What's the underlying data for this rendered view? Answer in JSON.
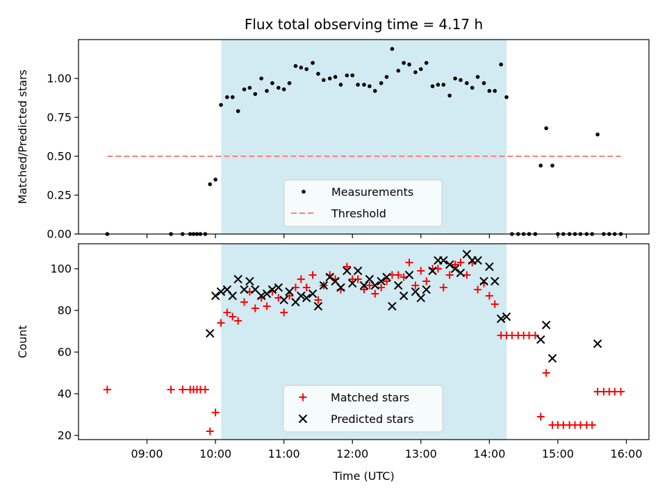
{
  "chart_data": [
    {
      "type": "scatter",
      "title": "Flux total observing time = 4.17 h",
      "xlabel": "",
      "ylabel": "Matched/Predicted stars",
      "ylim": [
        0,
        1.25
      ],
      "yticks": [
        "0.00",
        "0.25",
        "0.50",
        "0.75",
        "1.00"
      ],
      "ytick_values": [
        0,
        0.25,
        0.5,
        0.75,
        1.0
      ],
      "shaded_region": {
        "start": 10.083,
        "end": 14.25,
        "color": "#add8e6"
      },
      "legend": {
        "position": "bottom-center",
        "entries": [
          "Measurements",
          "Threshold"
        ]
      },
      "series": [
        {
          "name": "Measurements",
          "marker": "dot",
          "color": "#000000",
          "x": [
            8.42,
            9.35,
            9.52,
            9.63,
            9.68,
            9.73,
            9.78,
            9.85,
            9.92,
            10.0,
            10.08,
            10.17,
            10.25,
            10.33,
            10.42,
            10.5,
            10.58,
            10.67,
            10.75,
            10.83,
            10.92,
            11.0,
            11.08,
            11.17,
            11.25,
            11.33,
            11.42,
            11.5,
            11.58,
            11.67,
            11.75,
            11.83,
            11.92,
            12.0,
            12.08,
            12.17,
            12.25,
            12.33,
            12.42,
            12.5,
            12.58,
            12.67,
            12.75,
            12.83,
            12.92,
            13.0,
            13.08,
            13.17,
            13.25,
            13.33,
            13.42,
            13.5,
            13.58,
            13.67,
            13.75,
            13.83,
            13.92,
            14.0,
            14.08,
            14.17,
            14.25,
            14.33,
            14.42,
            14.5,
            14.58,
            14.67,
            14.75,
            14.83,
            14.92,
            15.0,
            15.08,
            15.17,
            15.25,
            15.33,
            15.42,
            15.5,
            15.58,
            15.67,
            15.75,
            15.83,
            15.92
          ],
          "y": [
            0,
            0,
            0,
            0,
            0,
            0,
            0,
            0,
            0.32,
            0.35,
            0.83,
            0.88,
            0.88,
            0.79,
            0.93,
            0.94,
            0.9,
            1.0,
            0.92,
            0.97,
            0.94,
            0.93,
            0.97,
            1.08,
            1.07,
            1.06,
            1.1,
            1.03,
            0.99,
            1.0,
            1.01,
            0.96,
            1.02,
            1.02,
            0.96,
            0.96,
            0.95,
            0.92,
            0.97,
            1.01,
            1.19,
            1.05,
            1.1,
            1.09,
            1.04,
            1.06,
            1.1,
            0.95,
            0.96,
            0.96,
            0.89,
            1.0,
            0.99,
            0.97,
            0.94,
            1.01,
            0.97,
            0.92,
            0.92,
            1.09,
            0.88,
            0,
            0,
            0,
            0,
            0,
            0.44,
            0.68,
            0.44,
            0,
            0,
            0,
            0,
            0,
            0,
            0,
            0.64,
            0,
            0,
            0,
            0
          ]
        },
        {
          "name": "Threshold",
          "marker": "dashed-line",
          "color": "#ff7f7f",
          "x": [
            8.42,
            15.92
          ],
          "y": [
            0.5,
            0.5
          ]
        }
      ]
    },
    {
      "type": "scatter",
      "title": "",
      "xlabel": "Time (UTC)",
      "ylabel": "Count",
      "ylim": [
        18,
        112
      ],
      "xlim": [
        8.0,
        16.33
      ],
      "yticks": [
        "20",
        "40",
        "60",
        "80",
        "100"
      ],
      "ytick_values": [
        20,
        40,
        60,
        80,
        100
      ],
      "xticks": [
        "09:00",
        "10:00",
        "11:00",
        "12:00",
        "13:00",
        "14:00",
        "15:00",
        "16:00"
      ],
      "xtick_values": [
        9,
        10,
        11,
        12,
        13,
        14,
        15,
        16
      ],
      "shaded_region": {
        "start": 10.083,
        "end": 14.25,
        "color": "#add8e6"
      },
      "legend": {
        "position": "bottom-center",
        "entries": [
          "Matched stars",
          "Predicted stars"
        ]
      },
      "series": [
        {
          "name": "Matched stars",
          "marker": "plus",
          "color": "#ff0000",
          "x": [
            8.42,
            9.35,
            9.52,
            9.63,
            9.68,
            9.73,
            9.78,
            9.85,
            9.92,
            10.0,
            10.08,
            10.17,
            10.25,
            10.33,
            10.42,
            10.5,
            10.58,
            10.67,
            10.75,
            10.83,
            10.92,
            11.0,
            11.08,
            11.17,
            11.25,
            11.33,
            11.42,
            11.5,
            11.58,
            11.67,
            11.75,
            11.83,
            11.92,
            12.0,
            12.08,
            12.17,
            12.25,
            12.33,
            12.42,
            12.5,
            12.58,
            12.67,
            12.75,
            12.83,
            12.92,
            13.0,
            13.08,
            13.17,
            13.25,
            13.33,
            13.42,
            13.5,
            13.58,
            13.67,
            13.75,
            13.83,
            13.92,
            14.0,
            14.08,
            14.17,
            14.25,
            14.33,
            14.42,
            14.5,
            14.58,
            14.67,
            14.75,
            14.83,
            14.92,
            15.0,
            15.08,
            15.17,
            15.25,
            15.33,
            15.42,
            15.5,
            15.58,
            15.67,
            15.75,
            15.83,
            15.92
          ],
          "y": [
            42,
            42,
            42,
            42,
            42,
            42,
            42,
            42,
            22,
            31,
            74,
            79,
            77,
            75,
            84,
            89,
            81,
            86,
            82,
            89,
            86,
            79,
            87,
            91,
            95,
            91,
            97,
            85,
            92,
            97,
            95,
            90,
            101,
            95,
            95,
            90,
            92,
            88,
            91,
            94,
            97,
            97,
            96,
            103,
            92,
            99,
            94,
            100,
            100,
            91,
            97,
            102,
            103,
            97,
            103,
            90,
            93,
            87,
            83,
            68,
            68,
            68,
            68,
            68,
            68,
            68,
            29,
            50,
            25,
            25,
            25,
            25,
            25,
            25,
            25,
            25,
            41,
            41,
            41,
            41,
            41
          ]
        },
        {
          "name": "Predicted stars",
          "marker": "x",
          "color": "#000000",
          "x": [
            9.92,
            10.0,
            10.08,
            10.17,
            10.25,
            10.33,
            10.42,
            10.5,
            10.58,
            10.67,
            10.75,
            10.83,
            10.92,
            11.0,
            11.08,
            11.17,
            11.25,
            11.33,
            11.42,
            11.5,
            11.58,
            11.67,
            11.75,
            11.83,
            11.92,
            12.0,
            12.08,
            12.17,
            12.25,
            12.33,
            12.42,
            12.5,
            12.58,
            12.67,
            12.75,
            12.83,
            12.92,
            13.0,
            13.08,
            13.17,
            13.25,
            13.33,
            13.42,
            13.5,
            13.58,
            13.67,
            13.75,
            13.83,
            13.92,
            14.0,
            14.08,
            14.17,
            14.25,
            14.75,
            14.83,
            14.92,
            15.58
          ],
          "y": [
            69,
            87,
            89,
            90,
            87,
            95,
            90,
            94,
            90,
            87,
            88,
            90,
            91,
            85,
            89,
            84,
            87,
            86,
            88,
            82,
            92,
            96,
            94,
            91,
            99,
            93,
            99,
            92,
            95,
            92,
            94,
            96,
            82,
            92,
            87,
            97,
            89,
            86,
            90,
            99,
            104,
            104,
            102,
            100,
            98,
            107,
            104,
            104,
            94,
            101,
            94,
            76,
            77,
            66,
            73,
            57,
            64
          ]
        }
      ]
    }
  ]
}
